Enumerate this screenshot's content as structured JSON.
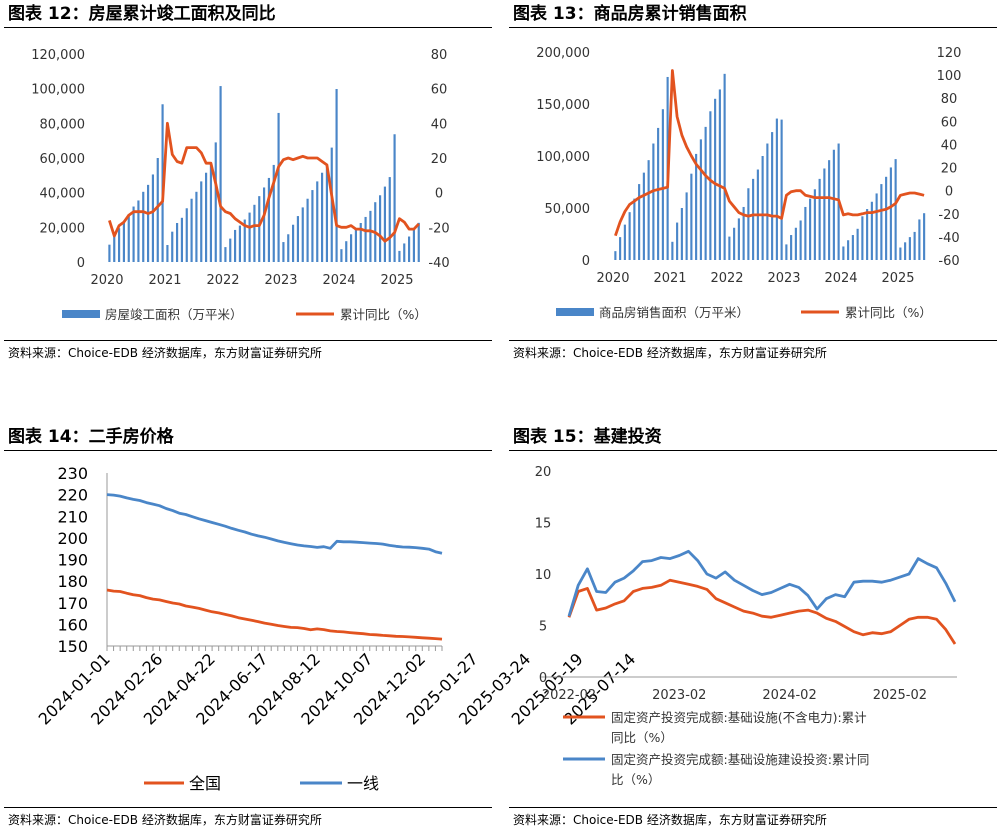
{
  "panels": [
    {
      "title": "图表 12：房屋累计竣工面积及同比",
      "source": "资料来源：Choice-EDB 经济数据库，东方财富证券研究所"
    },
    {
      "title": "图表 13：商品房累计销售面积",
      "source": "资料来源：Choice-EDB 经济数据库，东方财富证券研究所"
    },
    {
      "title": "图表 14：二手房价格",
      "source": "资料来源：Choice-EDB 经济数据库，东方财富证券研究所"
    },
    {
      "title": "图表 15：基建投资",
      "source": "资料来源：Choice-EDB 经济数据库，东方财富证券研究所"
    }
  ],
  "chart_data": [
    {
      "type": "bar",
      "title": "",
      "x_ticks": [
        "2020",
        "2021",
        "2022",
        "2023",
        "2024",
        "2025"
      ],
      "ylim": [
        0,
        120000
      ],
      "y_ticks": [
        "0",
        "20,000",
        "40,000",
        "60,000",
        "80,000",
        "100,000",
        "120,000"
      ],
      "y2lim": [
        -40,
        80
      ],
      "y2_ticks": [
        "-40",
        "-20",
        "0",
        "20",
        "40",
        "60",
        "80"
      ],
      "colors": {
        "bar": "#4A86C8",
        "line": "#E2531F"
      },
      "legend": [
        "房屋竣工面积（万平米）",
        "累计同比（%）"
      ],
      "legend_placement": "bottom",
      "months_per_year": 12,
      "series": [
        {
          "name": "房屋竣工面积（万平米）",
          "axis": "left",
          "kind": "bar",
          "values": [
            10000,
            15500,
            19500,
            22500,
            27500,
            32000,
            35500,
            40500,
            44500,
            50500,
            60000,
            91000,
            9800,
            17500,
            22500,
            25500,
            31000,
            36500,
            40500,
            46500,
            51500,
            57500,
            69000,
            101500,
            8600,
            13500,
            18500,
            21000,
            24500,
            28500,
            33000,
            38000,
            43000,
            48500,
            56000,
            86000,
            11500,
            16000,
            21500,
            26500,
            31500,
            36500,
            41500,
            46500,
            51500,
            56500,
            66000,
            99800,
            7400,
            12000,
            16000,
            19000,
            22500,
            26000,
            29500,
            34500,
            38500,
            43500,
            49000,
            73700,
            6400,
            10700,
            14700,
            18600,
            22600
          ]
        },
        {
          "name": "累计同比（%）",
          "axis": "right",
          "kind": "line",
          "values": [
            -16,
            -25,
            -19,
            -17,
            -13,
            -11,
            -11,
            -11,
            -12,
            -11,
            -8,
            -5,
            40,
            22,
            18,
            17,
            26,
            26,
            26,
            23,
            17,
            17,
            5,
            -8,
            -11,
            -12,
            -15,
            -17,
            -19,
            -20,
            -19,
            -19,
            -13,
            -3,
            6,
            15,
            19,
            20,
            19,
            20,
            21,
            20,
            20,
            20,
            18,
            16,
            -2,
            -19,
            -20,
            -20,
            -19,
            -21,
            -21,
            -22,
            -22,
            -23,
            -25,
            -28,
            -26,
            -23,
            -15,
            -17,
            -21,
            -21,
            -18
          ]
        }
      ]
    },
    {
      "type": "bar",
      "title": "",
      "x_ticks": [
        "2020",
        "2021",
        "2022",
        "2023",
        "2024",
        "2025"
      ],
      "ylim": [
        0,
        200000
      ],
      "y_ticks": [
        "0",
        "50,000",
        "100,000",
        "150,000",
        "200,000"
      ],
      "y2lim": [
        -60,
        120
      ],
      "y2_ticks": [
        "-60",
        "-40",
        "-20",
        "0",
        "20",
        "40",
        "60",
        "80",
        "100",
        "120"
      ],
      "colors": {
        "bar": "#4A86C8",
        "line": "#E2531F"
      },
      "legend": [
        "商品房销售面积（万平米）",
        "累计同比（%）"
      ],
      "legend_placement": "bottom",
      "months_per_year": 12,
      "series": [
        {
          "name": "商品房销售面积（万平米）",
          "axis": "left",
          "kind": "bar",
          "values": [
            8500,
            22000,
            34000,
            46000,
            59000,
            73000,
            84000,
            96000,
            112000,
            127000,
            145000,
            176000,
            17500,
            36000,
            50000,
            65000,
            83000,
            102000,
            116000,
            128000,
            143000,
            155000,
            164000,
            179000,
            22500,
            31000,
            40000,
            51000,
            69000,
            78000,
            87000,
            100000,
            112000,
            123000,
            136000,
            135000,
            15000,
            24000,
            31000,
            38000,
            51000,
            59000,
            68000,
            78000,
            88000,
            96000,
            106000,
            112000,
            13000,
            19000,
            24000,
            30000,
            42000,
            49000,
            56000,
            64000,
            73000,
            80000,
            89000,
            97000,
            12000,
            17000,
            22000,
            27000,
            39000,
            45000
          ]
        },
        {
          "name": "累计同比（%）",
          "axis": "right",
          "kind": "line",
          "values": [
            -39,
            -27,
            -18,
            -12,
            -9,
            -6,
            -4,
            -2,
            0,
            1,
            2,
            3,
            104,
            64,
            48,
            38,
            30,
            23,
            18,
            13,
            9,
            6,
            4,
            2,
            -9,
            -14,
            -19,
            -21,
            -22,
            -21,
            -21,
            -21,
            -21,
            -22,
            -22,
            -24,
            -4,
            -1,
            0,
            0,
            -4,
            -5,
            -6,
            -6,
            -6,
            -6,
            -7,
            -8,
            -21,
            -20,
            -21,
            -21,
            -20,
            -19,
            -19,
            -18,
            -17,
            -16,
            -14,
            -11,
            -4,
            -3,
            -2,
            -2,
            -3,
            -4
          ]
        }
      ]
    },
    {
      "type": "line",
      "title": "",
      "x_ticks": [
        "2024-01-01",
        "2024-02-26",
        "2024-04-22",
        "2024-06-17",
        "2024-08-12",
        "2024-10-07",
        "2024-12-02",
        "2025-01-27",
        "2025-03-24",
        "2025-05-19",
        "2025-07-14"
      ],
      "ylim": [
        150,
        230
      ],
      "y_ticks": [
        "150",
        "160",
        "170",
        "180",
        "190",
        "200",
        "210",
        "220",
        "230"
      ],
      "colors": {
        "全国": "#E2531F",
        "一线": "#4A86C8"
      },
      "legend": [
        "全国",
        "一线"
      ],
      "legend_placement": "bottom",
      "series": [
        {
          "name": "全国",
          "values": [
            175.9,
            175.4,
            175.2,
            174.4,
            173.7,
            173.3,
            172.4,
            171.7,
            171.3,
            170.6,
            169.9,
            169.4,
            168.5,
            168.0,
            167.4,
            166.6,
            165.8,
            165.3,
            164.6,
            163.9,
            163.1,
            162.5,
            161.9,
            161.3,
            160.6,
            160.1,
            159.5,
            159.0,
            158.6,
            158.5,
            158.1,
            157.5,
            157.9,
            157.6,
            157.0,
            156.7,
            156.5,
            156.2,
            155.9,
            155.7,
            155.3,
            155.2,
            154.9,
            154.7,
            154.5,
            154.4,
            154.2,
            154.0,
            153.8,
            153.6,
            153.4,
            153.2
          ]
        },
        {
          "name": "一线",
          "values": [
            220.0,
            219.8,
            219.3,
            218.5,
            217.8,
            217.3,
            216.3,
            215.6,
            214.9,
            213.6,
            212.6,
            211.4,
            210.8,
            209.8,
            208.8,
            208.0,
            207.1,
            206.3,
            205.4,
            204.4,
            203.5,
            202.7,
            201.7,
            200.9,
            200.3,
            199.5,
            198.6,
            197.9,
            197.3,
            196.7,
            196.3,
            196.0,
            195.6,
            195.9,
            195.2,
            198.4,
            198.2,
            198.2,
            198.0,
            197.8,
            197.6,
            197.4,
            197.1,
            196.5,
            196.1,
            195.8,
            195.7,
            195.5,
            195.2,
            194.8,
            193.6,
            192.9
          ]
        }
      ]
    },
    {
      "type": "line",
      "title": "",
      "x_ticks": [
        "2022-02",
        "2023-02",
        "2024-02",
        "2025-02"
      ],
      "ylim": [
        0,
        20
      ],
      "y_ticks": [
        "0",
        "5",
        "10",
        "15",
        "20"
      ],
      "colors": {
        "s1": "#E2531F",
        "s2": "#4A86C8"
      },
      "legend": [
        "固定资产投资完成额:基础设施(不含电力):累计同比（%）",
        "固定资产投资完成额:基础设施建设投资:累计同比（%）"
      ],
      "legend_lines": [
        [
          "固定资产投资完成额:基础设施(不含电力):累计",
          "同比（%）"
        ],
        [
          "固定资产投资完成额:基础设施建设投资:累计同",
          "比（%）"
        ]
      ],
      "legend_placement": "bottom",
      "series": [
        {
          "name": "固定资产投资完成额:基础设施(不含电力):累计同比（%）",
          "values": [
            5.8,
            8.3,
            8.6,
            6.5,
            6.7,
            7.1,
            7.4,
            8.3,
            8.6,
            8.7,
            8.9,
            9.4,
            9.2,
            9.0,
            8.8,
            8.5,
            7.6,
            7.2,
            6.8,
            6.4,
            6.2,
            5.9,
            5.8,
            6.0,
            6.2,
            6.4,
            6.5,
            6.2,
            5.7,
            5.4,
            4.9,
            4.4,
            4.1,
            4.3,
            4.2,
            4.4,
            5.0,
            5.6,
            5.8,
            5.8,
            5.6,
            4.6,
            3.2
          ]
        },
        {
          "name": "固定资产投资完成额:基础设施建设投资:累计同比（%）",
          "values": [
            5.9,
            8.9,
            10.5,
            8.3,
            8.2,
            9.2,
            9.6,
            10.3,
            11.2,
            11.3,
            11.6,
            11.5,
            11.8,
            12.2,
            11.3,
            10.0,
            9.6,
            10.2,
            9.4,
            8.9,
            8.4,
            8.0,
            8.2,
            8.6,
            9.0,
            8.7,
            7.9,
            6.6,
            7.6,
            8.0,
            7.8,
            9.2,
            9.3,
            9.3,
            9.2,
            9.4,
            9.7,
            10.0,
            11.5,
            11.0,
            10.6,
            9.1,
            7.3
          ]
        }
      ]
    }
  ]
}
